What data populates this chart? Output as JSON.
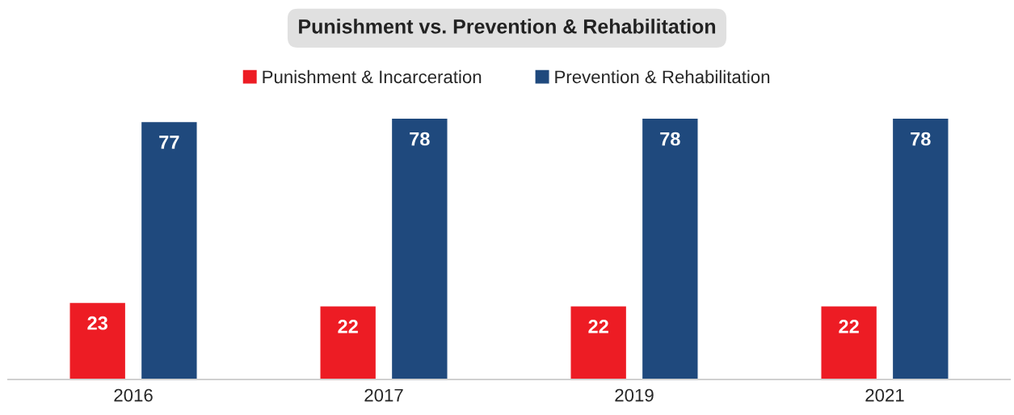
{
  "chart_data": {
    "type": "bar",
    "title": "Punishment vs. Prevention & Rehabilitation",
    "categories": [
      "2016",
      "2017",
      "2019",
      "2021"
    ],
    "series": [
      {
        "name": "Punishment & Incarceration",
        "color": "#ed1c24",
        "values": [
          23,
          22,
          22,
          22
        ]
      },
      {
        "name": "Prevention & Rehabilitation",
        "color": "#1f497d",
        "values": [
          77,
          78,
          78,
          78
        ]
      }
    ],
    "tick_labels": "x",
    "data_labels": true,
    "legend": "top",
    "grid": false
  }
}
